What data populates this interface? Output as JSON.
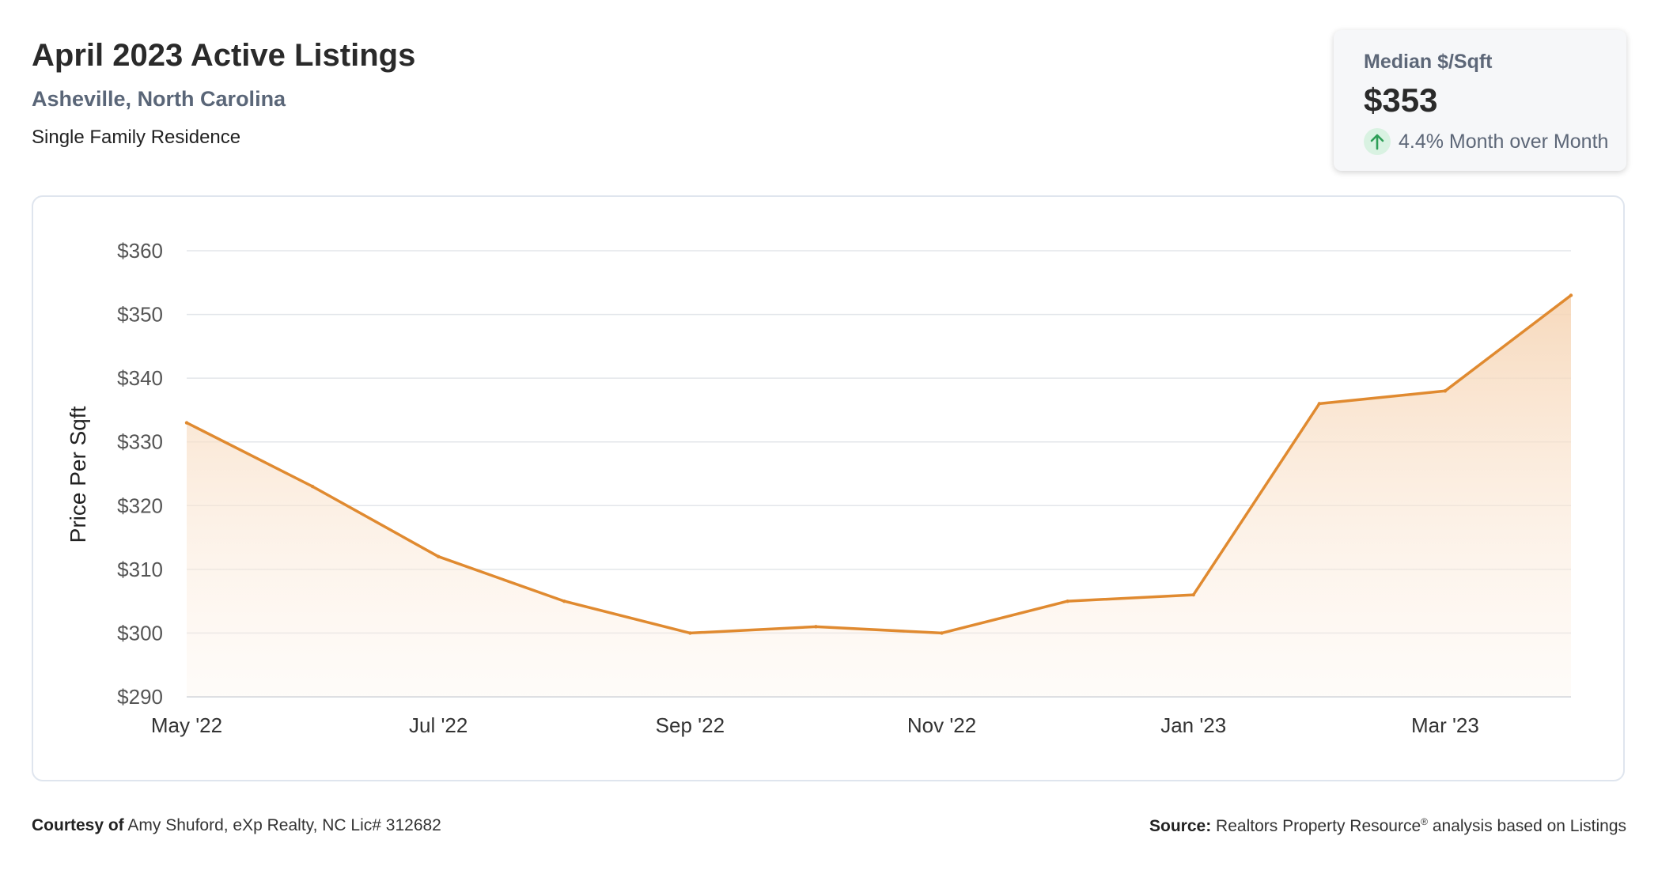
{
  "header": {
    "title": "April 2023 Active Listings",
    "location": "Asheville, North Carolina",
    "property_type": "Single Family Residence"
  },
  "stat_card": {
    "label": "Median $/Sqft",
    "value": "$353",
    "change": "4.4% Month over Month",
    "direction_icon": "arrow-up-icon",
    "accent_color": "#2e9e58"
  },
  "chart_data": {
    "type": "area",
    "title": "",
    "xlabel": "",
    "ylabel": "Price Per Sqft",
    "x": [
      "May '22",
      "Jun '22",
      "Jul '22",
      "Aug '22",
      "Sep '22",
      "Oct '22",
      "Nov '22",
      "Dec '22",
      "Jan '23",
      "Feb '23",
      "Mar '23",
      "Apr '23"
    ],
    "x_tick_labels": [
      "May '22",
      "Jul '22",
      "Sep '22",
      "Nov '22",
      "Jan '23",
      "Mar '23"
    ],
    "series": [
      {
        "values": [
          333,
          323,
          312,
          305,
          300,
          301,
          300,
          305,
          306,
          336,
          338,
          353
        ],
        "color": "#e08a30"
      }
    ],
    "ylim": [
      290,
      360
    ],
    "y_ticks": [
      290,
      300,
      310,
      320,
      330,
      340,
      350,
      360
    ],
    "y_tick_prefix": "$",
    "grid": true,
    "legend": "none"
  },
  "footer": {
    "courtesy_label": "Courtesy of",
    "courtesy_text": "Amy Shuford, eXp Realty, NC Lic# 312682",
    "source_label": "Source:",
    "source_text": "Realtors Property Resource",
    "source_mark": "®",
    "source_suffix": "analysis based on Listings"
  }
}
